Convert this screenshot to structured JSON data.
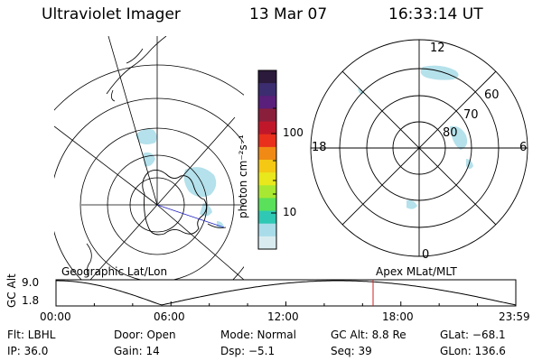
{
  "header": {
    "instrument": "Ultraviolet Imager",
    "date": "13 Mar 07",
    "time": "16:33:14 UT"
  },
  "colorbar": {
    "unit_label": "photon cm⁻²s⁻¹",
    "ticks": [
      "100",
      "10"
    ],
    "colors": [
      "#2b1a3c",
      "#3c2d70",
      "#5a1f7a",
      "#8a1f3c",
      "#c0182a",
      "#e8301c",
      "#f08a14",
      "#f5c814",
      "#e8e81c",
      "#a8e832",
      "#5ae05a",
      "#2ec8b4",
      "#a8dce8",
      "#d8ecf0"
    ]
  },
  "geo_panel": {
    "label": "Geographic Lat/Lon"
  },
  "polar_panel": {
    "label": "Apex MLat/MLT",
    "mlt_labels": {
      "top": "12",
      "left": "18",
      "right": "6",
      "bottom": "0"
    },
    "lat_labels": [
      "60",
      "70",
      "80"
    ]
  },
  "altitude_plot": {
    "ylabel": "GC Alt",
    "ymax_label": "9.0",
    "ymin_label": "1.8",
    "xticks": [
      "00:00",
      "06:00",
      "12:00",
      "18:00",
      "23:59"
    ],
    "current_hour": 16.55,
    "marker_color": "#d02020"
  },
  "footer": {
    "flt": "Flt: LBHL",
    "door": "Door: Open",
    "mode": "Mode: Normal",
    "gc_alt": "GC Alt: 8.8 Re",
    "glat": "GLat: −68.1",
    "ip": "IP: 36.0",
    "gain": "Gain: 14",
    "dsp": "Dsp:    −5.1",
    "seq": "Seq: 39",
    "glon": "GLon: 136.6"
  }
}
